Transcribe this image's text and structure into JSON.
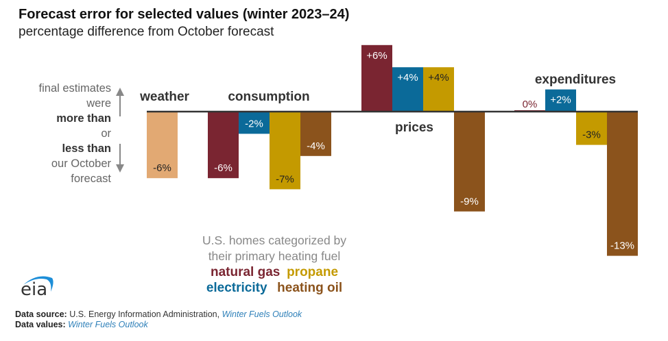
{
  "chart_data": {
    "type": "bar",
    "title": "Forecast error for selected values (winter 2023–24)",
    "subtitle": "percentage difference from October forecast",
    "ylabel": "percentage difference",
    "ylim": [
      -13,
      6
    ],
    "grid": false,
    "legend_placement": "bottom-center",
    "groups": [
      {
        "label": "weather",
        "bars": [
          {
            "series": "weather",
            "value": -6,
            "label": "-6%"
          }
        ]
      },
      {
        "label": "consumption",
        "bars": [
          {
            "series": "natural gas",
            "value": -6,
            "label": "-6%"
          },
          {
            "series": "electricity",
            "value": -2,
            "label": "-2%"
          },
          {
            "series": "propane",
            "value": -7,
            "label": "-7%"
          },
          {
            "series": "heating oil",
            "value": -4,
            "label": "-4%"
          }
        ]
      },
      {
        "label": "prices",
        "bars": [
          {
            "series": "natural gas",
            "value": 6,
            "label": "+6%"
          },
          {
            "series": "electricity",
            "value": 4,
            "label": "+4%"
          },
          {
            "series": "propane",
            "value": 4,
            "label": "+4%"
          },
          {
            "series": "heating oil",
            "value": -9,
            "label": "-9%"
          }
        ]
      },
      {
        "label": "expenditures",
        "bars": [
          {
            "series": "natural gas",
            "value": 0,
            "label": "0%"
          },
          {
            "series": "electricity",
            "value": 2,
            "label": "+2%"
          },
          {
            "series": "propane",
            "value": -3,
            "label": "-3%"
          },
          {
            "series": "heating oil",
            "value": -13,
            "label": "-13%"
          }
        ]
      }
    ],
    "series_colors": {
      "weather": "#e2a973",
      "natural gas": "#7a2531",
      "electricity": "#0b6a99",
      "propane": "#c49a00",
      "heating oil": "#8b531c"
    },
    "label_text_colors": {
      "weather": "#222222",
      "natural gas": "#ffffff",
      "electricity": "#ffffff",
      "propane": "#222222",
      "heating oil": "#ffffff"
    }
  },
  "side_note": {
    "l1": "final estimates",
    "l2": "were",
    "l3": "more than",
    "l4": "or",
    "l5": "less than",
    "l6": "our October",
    "l7": "forecast"
  },
  "legend": {
    "intro1": "U.S. homes categorized by",
    "intro2": "their primary heating fuel",
    "natural_gas": "natural gas",
    "propane": "propane",
    "electricity": "electricity",
    "heating_oil": "heating oil"
  },
  "logo": "eia",
  "source": {
    "label1": "Data source:",
    "text1": "U.S. Energy Information Administration,",
    "link1": "Winter Fuels Outlook",
    "label2": "Data values:",
    "link2": "Winter Fuels Outlook"
  }
}
